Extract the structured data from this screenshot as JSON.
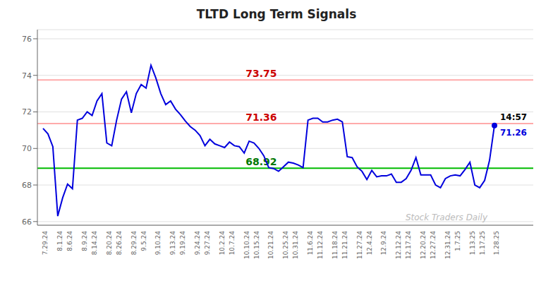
{
  "chart_data": {
    "type": "line",
    "title": "TLTD Long Term Signals",
    "color": "#0000dd",
    "grid": true,
    "ylim": [
      65.8,
      76.5
    ],
    "yticks": [
      66,
      68,
      70,
      72,
      74,
      76
    ],
    "categories": [
      "7.29.24",
      null,
      null,
      "8.1.24",
      null,
      "8.6.24",
      null,
      null,
      "8.9.24",
      null,
      "8.14.24",
      null,
      null,
      "8.20.24",
      null,
      "8.26.24",
      null,
      null,
      "8.29.24",
      null,
      "9.5.24",
      null,
      null,
      "9.10.24",
      null,
      null,
      "9.13.24",
      null,
      "9.19.24",
      null,
      null,
      "9.24.24",
      null,
      "9.27.24",
      null,
      null,
      "10.2.24",
      null,
      "10.7.24",
      null,
      null,
      "10.10.24",
      null,
      "10.15.24",
      null,
      null,
      "10.21.24",
      null,
      null,
      "10.25.24",
      null,
      "10.31.24",
      null,
      null,
      "11.6.24",
      null,
      "11.12.24",
      null,
      null,
      "11.18.24",
      null,
      "11.21.24",
      null,
      null,
      "11.27.24",
      null,
      "12.4.24",
      null,
      null,
      "12.9.24",
      null,
      null,
      "12.12.24",
      null,
      "12.17.24",
      null,
      null,
      "12.20.24",
      null,
      "12.27.24",
      null,
      null,
      "12.31.24",
      null,
      "1.7.25",
      null,
      null,
      "1.13.25",
      null,
      "1.17.25",
      null,
      null,
      "1.28.25"
    ],
    "values": [
      71.1,
      70.8,
      70.1,
      66.3,
      67.3,
      68.05,
      67.8,
      71.55,
      71.65,
      72.0,
      71.8,
      72.6,
      73.0,
      70.3,
      70.15,
      71.55,
      72.7,
      73.1,
      71.95,
      73.0,
      73.5,
      73.3,
      74.55,
      73.85,
      73.0,
      72.4,
      72.6,
      72.15,
      71.85,
      71.5,
      71.2,
      71.0,
      70.7,
      70.15,
      70.5,
      70.25,
      70.15,
      70.05,
      70.35,
      70.15,
      70.1,
      69.75,
      70.4,
      70.3,
      70.0,
      69.6,
      68.95,
      68.9,
      68.75,
      69.0,
      69.25,
      69.2,
      69.1,
      68.95,
      71.55,
      71.65,
      71.65,
      71.45,
      71.45,
      71.55,
      71.6,
      71.45,
      69.55,
      69.5,
      69.0,
      68.75,
      68.3,
      68.8,
      68.45,
      68.5,
      68.5,
      68.6,
      68.15,
      68.15,
      68.35,
      68.8,
      69.5,
      68.55,
      68.55,
      68.55,
      68.0,
      67.85,
      68.35,
      68.5,
      68.55,
      68.5,
      68.85,
      69.25,
      68.0,
      67.85,
      68.25,
      69.35,
      71.26
    ],
    "reference_lines": [
      {
        "y": 73.75,
        "color": "#ffaaaa",
        "label": "73.75",
        "label_color": "#cc0000"
      },
      {
        "y": 71.36,
        "color": "#ffaaaa",
        "label": "71.36",
        "label_color": "#cc0000"
      },
      {
        "y": 68.92,
        "color": "#00bb00",
        "label": "68.92",
        "label_color": "#007700"
      }
    ],
    "last_point_labels": [
      {
        "text": "14:57",
        "color": "#000000"
      },
      {
        "text": "71.26",
        "color": "#0000dd"
      }
    ],
    "watermark": {
      "text": "Stock Traders Daily",
      "color": "#bbbbbb"
    }
  }
}
